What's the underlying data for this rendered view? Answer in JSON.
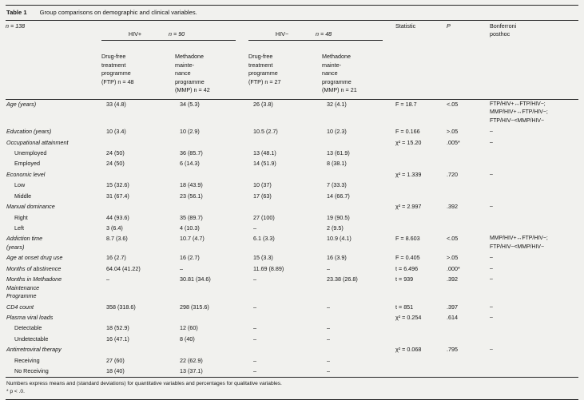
{
  "page": {
    "background": "#f1f1ee",
    "rule_color": "#242424"
  },
  "table": {
    "title": {
      "label": "Table 1",
      "caption": "Group comparisons on demographic and clinical variables."
    },
    "header": {
      "n_total": "n = 138",
      "groups": [
        {
          "name": "HIV+",
          "n": "n = 90"
        },
        {
          "name": "HIV−",
          "n": "n = 48"
        }
      ],
      "subheaders": [
        "Drug-free\ntreatment\nprogramme\n(FTP) n = 48",
        "Methadone\nmainte-\nnance\nprogramme\n(MMP) n = 42",
        "Drug-free\ntreatment\nprogramme\n(FTP) n = 27",
        "Methadone\nmainte-\nnance\nprogramme\n(MMP) n = 21"
      ],
      "statistic": "Statistic",
      "p": "P",
      "bonferroni": "Bonferroni\nposthoc"
    },
    "rows": [
      {
        "label": "Age (years)",
        "kind": "var",
        "cells": [
          "33 (4.8)",
          "34 (5.3)",
          "26 (3.8)",
          "32 (4.1)"
        ],
        "stat": "F = 18.7",
        "p": "<.05",
        "post": "FTP/HIV+↔FTP/HIV−;\nMMP/HIV+↔FTP/HIV−;\nFTP/HIV−<MMP/HIV−"
      },
      {
        "label": "Education (years)",
        "kind": "var",
        "cells": [
          "10 (3.4)",
          "10 (2.9)",
          "10.5 (2.7)",
          "10 (2.3)"
        ],
        "stat": "F = 0.166",
        "p": ">.05",
        "post": "–"
      },
      {
        "label": "Occupational attainment",
        "kind": "var",
        "cells": [
          "",
          "",
          "",
          ""
        ],
        "stat": "χ² = 15.20",
        "p": ".005*",
        "post": "–"
      },
      {
        "label": "Unemployed",
        "kind": "sub",
        "cells": [
          "24 (50)",
          "36 (85.7)",
          "13 (48.1)",
          "13 (61.9)"
        ],
        "stat": "",
        "p": "",
        "post": ""
      },
      {
        "label": "Employed",
        "kind": "sub",
        "cells": [
          "24 (50)",
          "6 (14.3)",
          "14 (51.9)",
          "8 (38.1)"
        ],
        "stat": "",
        "p": "",
        "post": ""
      },
      {
        "label": "Economic level",
        "kind": "var",
        "cells": [
          "",
          "",
          "",
          ""
        ],
        "stat": "χ² = 1.339",
        "p": ".720",
        "post": "–"
      },
      {
        "label": "Low",
        "kind": "sub",
        "cells": [
          "15 (32.6)",
          "18 (43.9)",
          "10 (37)",
          "7 (33.3)"
        ],
        "stat": "",
        "p": "",
        "post": ""
      },
      {
        "label": "Middle",
        "kind": "sub",
        "cells": [
          "31 (67.4)",
          "23 (56.1)",
          "17 (63)",
          "14 (66.7)"
        ],
        "stat": "",
        "p": "",
        "post": ""
      },
      {
        "label": "Manual dominance",
        "kind": "var",
        "cells": [
          "",
          "",
          "",
          ""
        ],
        "stat": "χ² = 2.997",
        "p": ".392",
        "post": "–"
      },
      {
        "label": "Right",
        "kind": "sub",
        "cells": [
          "44 (93.6)",
          "35 (89.7)",
          "27 (100)",
          "19 (90.5)"
        ],
        "stat": "",
        "p": "",
        "post": ""
      },
      {
        "label": "Left",
        "kind": "sub",
        "cells": [
          "3 (6.4)",
          "4 (10.3)",
          "–",
          "2 (9.5)"
        ],
        "stat": "",
        "p": "",
        "post": ""
      },
      {
        "label": "Addiction time\n(years)",
        "kind": "var",
        "cells": [
          "8.7 (3.6)",
          "10.7 (4.7)",
          "6.1 (3.3)",
          "10.9 (4.1)"
        ],
        "stat": "F = 8.603",
        "p": "<.05",
        "post": "MMP/HIV+↔FTP/HIV−;\nFTP/HIV−<MMP/HIV−"
      },
      {
        "label": "Age at onset drug use",
        "kind": "var",
        "cells": [
          "16 (2.7)",
          "16 (2.7)",
          "15 (3.3)",
          "16 (3.9)"
        ],
        "stat": "F = 0.405",
        "p": ">.05",
        "post": "–"
      },
      {
        "label": "Months of abstinence",
        "kind": "var",
        "cells": [
          "64.04 (41.22)",
          "–",
          "11.69 (8.89)",
          "–"
        ],
        "stat": "t = 6.496",
        "p": ".000*",
        "post": "–"
      },
      {
        "label": "Months in Methadone\nMaintenance\nProgramme",
        "kind": "var",
        "cells": [
          "–",
          "30.81 (34.6)",
          "–",
          "23.38 (26.8)"
        ],
        "stat": "t = 939",
        "p": ".392",
        "post": "–"
      },
      {
        "label": "CD4 count",
        "kind": "var",
        "cells": [
          "358 (318.6)",
          "298 (315.6)",
          "–",
          "–"
        ],
        "stat": "t = 851",
        "p": ".397",
        "post": "–"
      },
      {
        "label": "Plasma viral loads",
        "kind": "var",
        "cells": [
          "",
          "",
          "",
          ""
        ],
        "stat": "χ² = 0.254",
        "p": ".614",
        "post": "–"
      },
      {
        "label": "Detectable",
        "kind": "sub",
        "cells": [
          "18 (52.9)",
          "12 (60)",
          "–",
          "–"
        ],
        "stat": "",
        "p": "",
        "post": ""
      },
      {
        "label": "Undetectable",
        "kind": "sub",
        "cells": [
          "16 (47.1)",
          "8 (40)",
          "–",
          "–"
        ],
        "stat": "",
        "p": "",
        "post": ""
      },
      {
        "label": "Antirretroviral therapy",
        "kind": "var",
        "cells": [
          "",
          "",
          "",
          ""
        ],
        "stat": "χ² = 0.068",
        "p": ".795",
        "post": "–"
      },
      {
        "label": "Receiving",
        "kind": "sub",
        "cells": [
          "27 (60)",
          "22 (62.9)",
          "–",
          "–"
        ],
        "stat": "",
        "p": "",
        "post": ""
      },
      {
        "label": "No Receiving",
        "kind": "sub",
        "cells": [
          "18 (40)",
          "13 (37.1)",
          "–",
          "–"
        ],
        "stat": "",
        "p": "",
        "post": ""
      }
    ],
    "footnotes": [
      "Numbers express means and (standard deviations) for quantitative variables and percentages for qualitative variables.",
      "* p < .0."
    ]
  }
}
